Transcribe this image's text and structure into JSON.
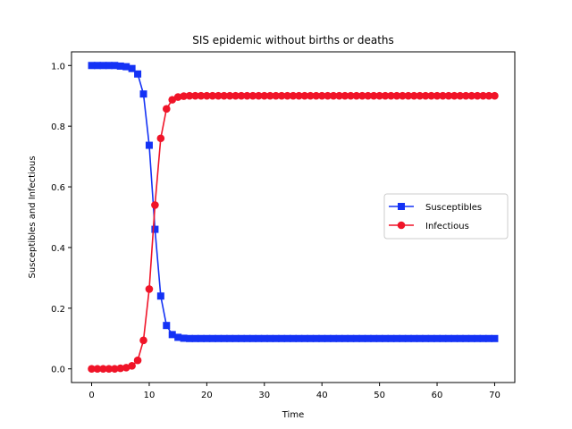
{
  "chart_data": {
    "type": "line",
    "title": "SIS epidemic without births or deaths",
    "xlabel": "Time",
    "ylabel": "Susceptibles and Infectious",
    "xlim": [
      -3.5,
      73.5
    ],
    "ylim": [
      -0.045,
      1.045
    ],
    "xticks": [
      0,
      10,
      20,
      30,
      40,
      50,
      60,
      70
    ],
    "yticks": [
      0.0,
      0.2,
      0.4,
      0.6,
      0.8,
      1.0
    ],
    "ytick_labels": [
      "0.0",
      "0.2",
      "0.4",
      "0.6",
      "0.8",
      "1.0"
    ],
    "grid": false,
    "legend_position": "center-right",
    "x": [
      0,
      1,
      2,
      3,
      4,
      5,
      6,
      7,
      8,
      9,
      10,
      11,
      12,
      13,
      14,
      15,
      16,
      17,
      18,
      19,
      20,
      21,
      22,
      23,
      24,
      25,
      26,
      27,
      28,
      29,
      30,
      31,
      32,
      33,
      34,
      35,
      36,
      37,
      38,
      39,
      40,
      41,
      42,
      43,
      44,
      45,
      46,
      47,
      48,
      49,
      50,
      51,
      52,
      53,
      54,
      55,
      56,
      57,
      58,
      59,
      60,
      61,
      62,
      63,
      64,
      65,
      66,
      67,
      68,
      69,
      70
    ],
    "series": [
      {
        "name": "Susceptibles",
        "color": "#1432f5",
        "marker": "square",
        "values": [
          1.0,
          1.0,
          1.0,
          1.0,
          1.0,
          0.998,
          0.996,
          0.99,
          0.972,
          0.906,
          0.737,
          0.46,
          0.24,
          0.143,
          0.113,
          0.104,
          0.101,
          0.1,
          0.1,
          0.1,
          0.1,
          0.1,
          0.1,
          0.1,
          0.1,
          0.1,
          0.1,
          0.1,
          0.1,
          0.1,
          0.1,
          0.1,
          0.1,
          0.1,
          0.1,
          0.1,
          0.1,
          0.1,
          0.1,
          0.1,
          0.1,
          0.1,
          0.1,
          0.1,
          0.1,
          0.1,
          0.1,
          0.1,
          0.1,
          0.1,
          0.1,
          0.1,
          0.1,
          0.1,
          0.1,
          0.1,
          0.1,
          0.1,
          0.1,
          0.1,
          0.1,
          0.1,
          0.1,
          0.1,
          0.1,
          0.1,
          0.1,
          0.1,
          0.1,
          0.1,
          0.1
        ]
      },
      {
        "name": "Infectious",
        "color": "#f01428",
        "marker": "circle",
        "values": [
          0.0,
          0.0,
          0.0,
          0.0,
          0.0,
          0.002,
          0.004,
          0.01,
          0.028,
          0.094,
          0.263,
          0.54,
          0.76,
          0.857,
          0.887,
          0.896,
          0.899,
          0.9,
          0.9,
          0.9,
          0.9,
          0.9,
          0.9,
          0.9,
          0.9,
          0.9,
          0.9,
          0.9,
          0.9,
          0.9,
          0.9,
          0.9,
          0.9,
          0.9,
          0.9,
          0.9,
          0.9,
          0.9,
          0.9,
          0.9,
          0.9,
          0.9,
          0.9,
          0.9,
          0.9,
          0.9,
          0.9,
          0.9,
          0.9,
          0.9,
          0.9,
          0.9,
          0.9,
          0.9,
          0.9,
          0.9,
          0.9,
          0.9,
          0.9,
          0.9,
          0.9,
          0.9,
          0.9,
          0.9,
          0.9,
          0.9,
          0.9,
          0.9,
          0.9,
          0.9,
          0.9
        ]
      }
    ]
  }
}
